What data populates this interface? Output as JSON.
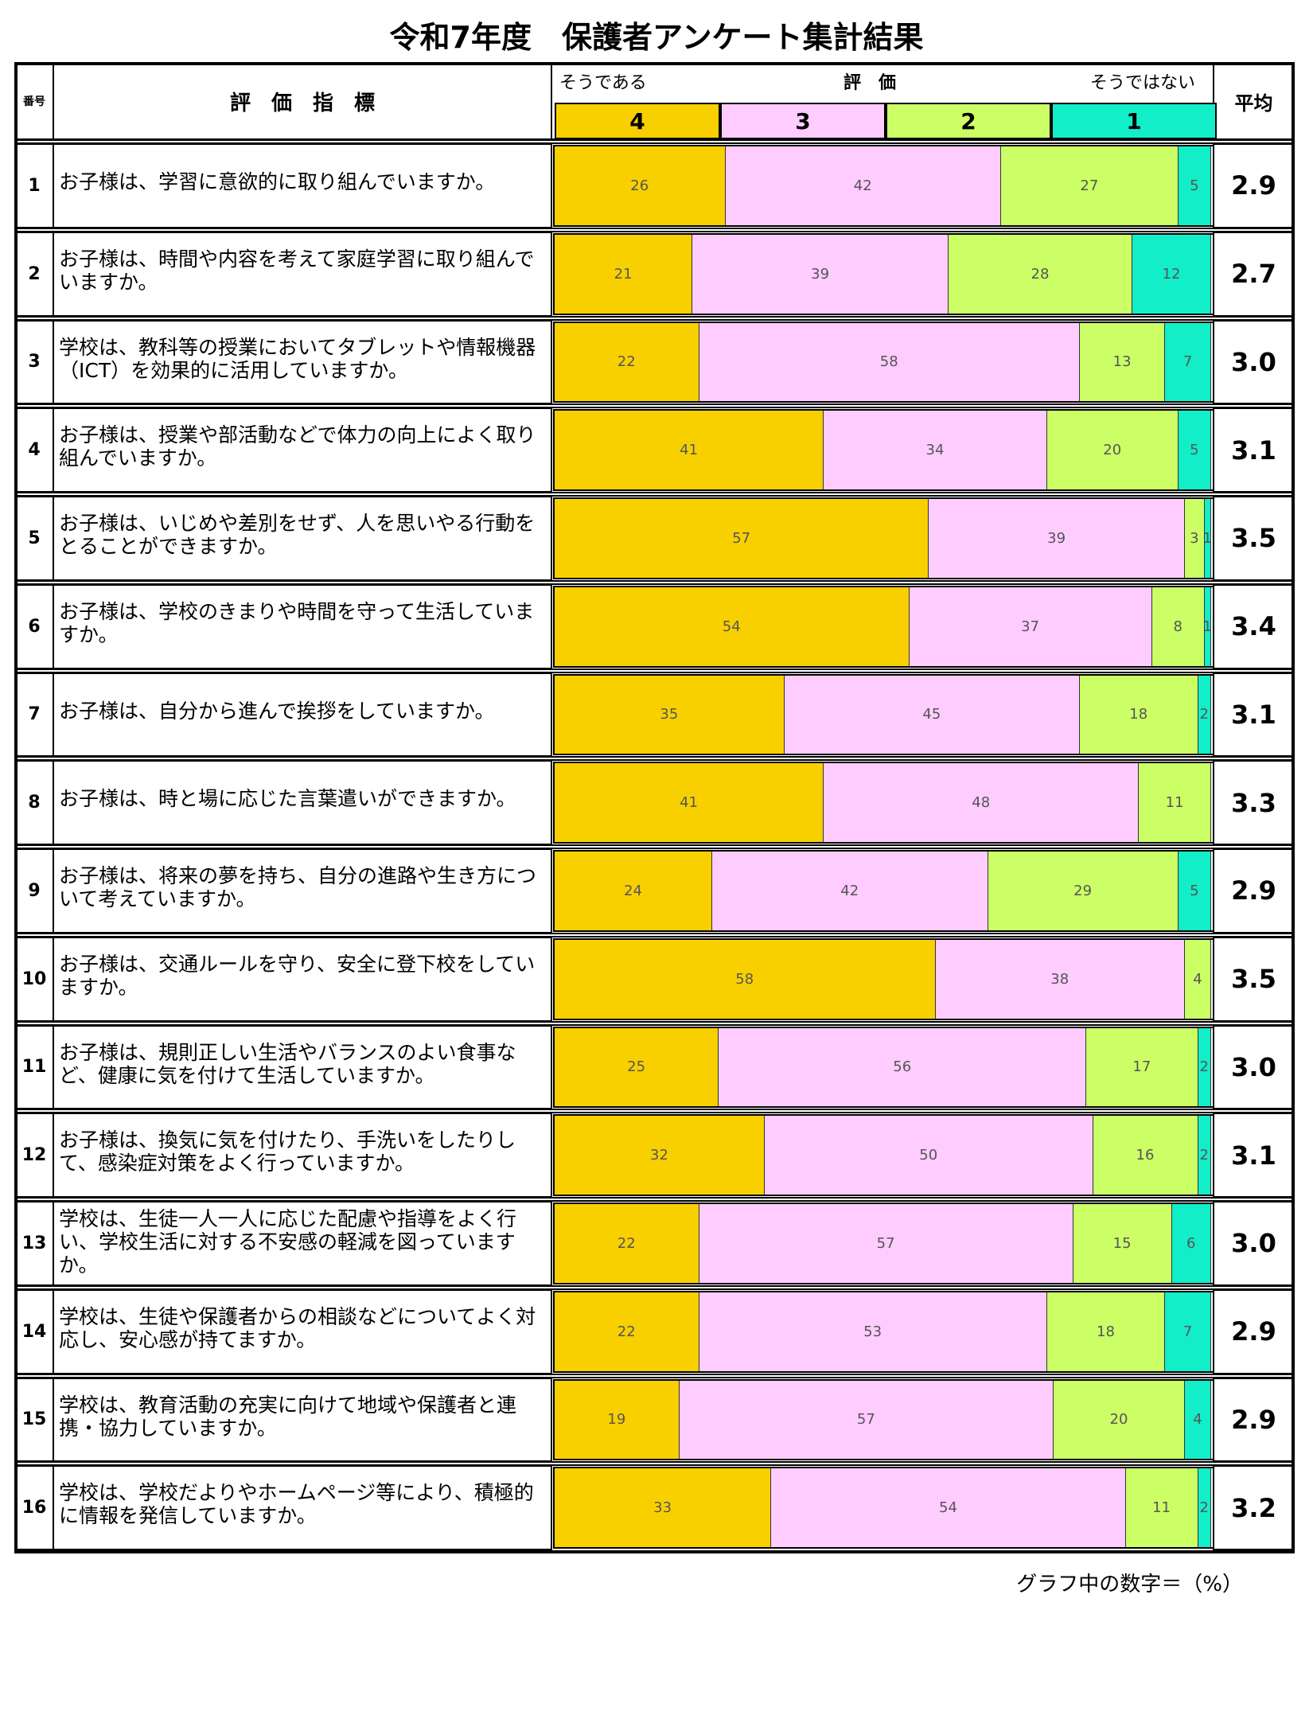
{
  "title": "令和7年度　保護者アンケート集計結果",
  "header": {
    "number": "番号",
    "indicator": "評　価　指　標",
    "positive": "そうである",
    "rating": "評　価",
    "negative": "そうではない",
    "scale": [
      "4",
      "3",
      "2",
      "1"
    ],
    "average": "平均"
  },
  "colors": [
    "#f8d000",
    "#ffccff",
    "#ccff66",
    "#11eec8"
  ],
  "rows": [
    {
      "number": 1,
      "question": "お子様は、学習に意欲的に取り組んでいますか。",
      "values": [
        26,
        42,
        27,
        5
      ],
      "average": "2.9"
    },
    {
      "number": 2,
      "question": "お子様は、時間や内容を考えて家庭学習に取り組んでいますか。",
      "values": [
        21,
        39,
        28,
        12
      ],
      "average": "2.7"
    },
    {
      "number": 3,
      "question": "学校は、教科等の授業においてタブレットや情報機器（ICT）を効果的に活用していますか。",
      "values": [
        22,
        58,
        13,
        7
      ],
      "average": "3.0"
    },
    {
      "number": 4,
      "question": "お子様は、授業や部活動などで体力の向上によく取り組んでいますか。",
      "values": [
        41,
        34,
        20,
        5
      ],
      "average": "3.1"
    },
    {
      "number": 5,
      "question": "お子様は、いじめや差別をせず、人を思いやる行動をとることができますか。",
      "values": [
        57,
        39,
        3,
        1
      ],
      "average": "3.5"
    },
    {
      "number": 6,
      "question": "お子様は、学校のきまりや時間を守って生活していますか。",
      "values": [
        54,
        37,
        8,
        1
      ],
      "average": "3.4"
    },
    {
      "number": 7,
      "question": "お子様は、自分から進んで挨拶をしていますか。",
      "values": [
        35,
        45,
        18,
        2
      ],
      "average": "3.1"
    },
    {
      "number": 8,
      "question": "お子様は、時と場に応じた言葉遣いができますか。",
      "values": [
        41,
        48,
        11
      ],
      "average": "3.3"
    },
    {
      "number": 9,
      "question": "お子様は、将来の夢を持ち、自分の進路や生き方について考えていますか。",
      "values": [
        24,
        42,
        29,
        5
      ],
      "average": "2.9"
    },
    {
      "number": 10,
      "question": "お子様は、交通ルールを守り、安全に登下校をしていますか。",
      "values": [
        58,
        38,
        4
      ],
      "average": "3.5"
    },
    {
      "number": 11,
      "question": "お子様は、規則正しい生活やバランスのよい食事など、健康に気を付けて生活していますか。",
      "values": [
        25,
        56,
        17,
        2
      ],
      "average": "3.0"
    },
    {
      "number": 12,
      "question": "お子様は、換気に気を付けたり、手洗いをしたりして、感染症対策をよく行っていますか。",
      "values": [
        32,
        50,
        16,
        2
      ],
      "average": "3.1"
    },
    {
      "number": 13,
      "question": "学校は、生徒一人一人に応じた配慮や指導をよく行い、学校生活に対する不安感の軽減を図っていますか。",
      "values": [
        22,
        57,
        15,
        6
      ],
      "average": "3.0"
    },
    {
      "number": 14,
      "question": "学校は、生徒や保護者からの相談などについてよく対応し、安心感が持てますか。",
      "values": [
        22,
        53,
        18,
        7
      ],
      "average": "2.9"
    },
    {
      "number": 15,
      "question": "学校は、教育活動の充実に向けて地域や保護者と連携・協力していますか。",
      "values": [
        19,
        57,
        20,
        4
      ],
      "average": "2.9"
    },
    {
      "number": 16,
      "question": "学校は、学校だよりやホームページ等により、積極的に情報を発信していますか。",
      "values": [
        33,
        54,
        11,
        2
      ],
      "average": "3.2"
    }
  ],
  "footnote": "グラフ中の数字＝（%）"
}
